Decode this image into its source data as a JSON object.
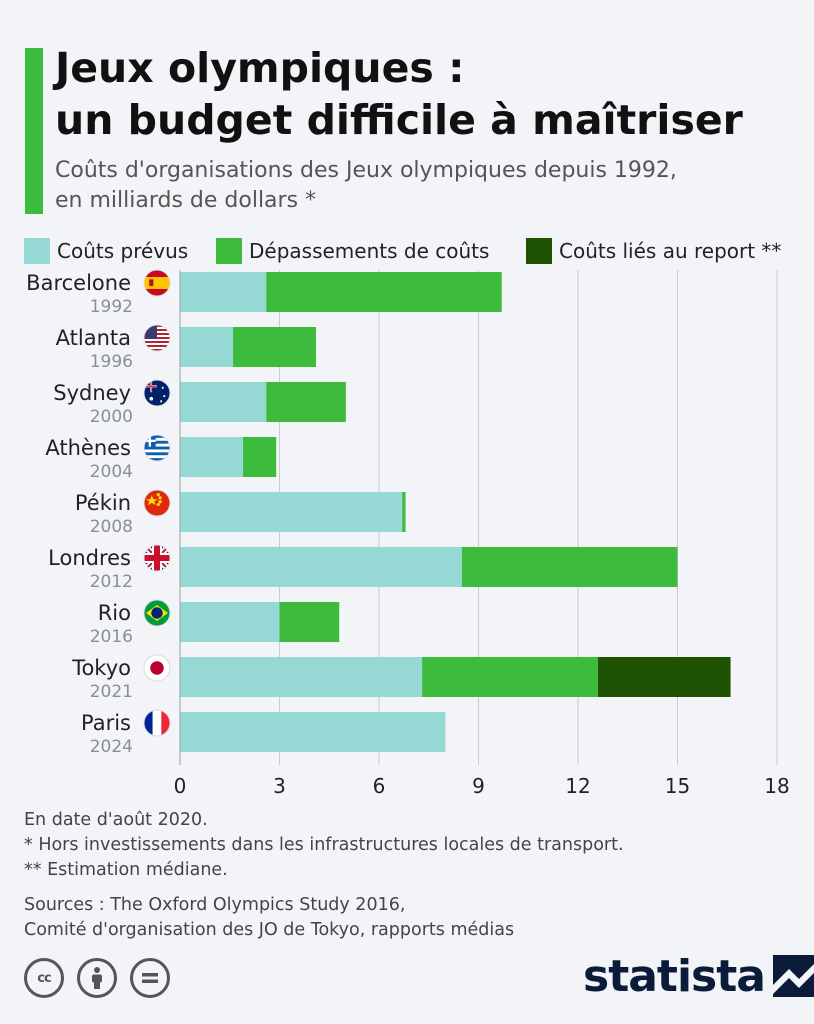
{
  "header": {
    "title_line1": "Jeux olympiques :",
    "title_line2": "un budget difficile à maîtriser",
    "subtitle_line1": "Coûts d'organisations des Jeux olympiques depuis 1992,",
    "subtitle_line2": "en milliards de dollars *"
  },
  "legend": [
    {
      "label": "Coûts prévus",
      "color": "#96d8d4"
    },
    {
      "label": "Dépassements de coûts",
      "color": "#3dbb3d"
    },
    {
      "label": "Coûts liés au report **",
      "color": "#1f5203"
    }
  ],
  "chart_data": {
    "type": "bar",
    "orientation": "horizontal",
    "stacked": true,
    "categories": [
      {
        "city": "Barcelone",
        "year": "1992",
        "flag": "spain-flag-icon"
      },
      {
        "city": "Atlanta",
        "year": "1996",
        "flag": "usa-flag-icon"
      },
      {
        "city": "Sydney",
        "year": "2000",
        "flag": "australia-flag-icon"
      },
      {
        "city": "Athènes",
        "year": "2004",
        "flag": "greece-flag-icon"
      },
      {
        "city": "Pékin",
        "year": "2008",
        "flag": "china-flag-icon"
      },
      {
        "city": "Londres",
        "year": "2012",
        "flag": "uk-flag-icon"
      },
      {
        "city": "Rio",
        "year": "2016",
        "flag": "brazil-flag-icon"
      },
      {
        "city": "Tokyo",
        "year": "2021",
        "flag": "japan-flag-icon"
      },
      {
        "city": "Paris",
        "year": "2024",
        "flag": "france-flag-icon"
      }
    ],
    "series": [
      {
        "name": "Coûts prévus",
        "color": "#96d8d4",
        "values": [
          2.6,
          1.6,
          2.6,
          1.9,
          6.7,
          8.5,
          3.0,
          7.3,
          8.0
        ]
      },
      {
        "name": "Dépassements de coûts",
        "color": "#3dbb3d",
        "values": [
          7.1,
          2.5,
          2.4,
          1.0,
          0.1,
          6.5,
          1.8,
          5.3,
          0
        ]
      },
      {
        "name": "Coûts liés au report **",
        "color": "#1f5203",
        "values": [
          0,
          0,
          0,
          0,
          0,
          0,
          0,
          4.0,
          0
        ]
      }
    ],
    "xlim": [
      0,
      18
    ],
    "xticks": [
      0,
      3,
      6,
      9,
      12,
      15,
      18
    ],
    "grid": true,
    "legend_position": "top"
  },
  "footnotes": {
    "date_note": "En date d'août 2020.",
    "note1": "*   Hors investissements dans les infrastructures locales de transport.",
    "note2": "** Estimation médiane.",
    "sources_line1": "Sources : The Oxford Olympics Study 2016,",
    "sources_line2": "Comité d'organisation des JO de Tokyo, rapports médias"
  },
  "license_icons": [
    {
      "name": "cc-icon",
      "glyph": "cc"
    },
    {
      "name": "by-icon",
      "glyph": "i"
    },
    {
      "name": "nd-icon",
      "glyph": "="
    }
  ],
  "brand": {
    "name": "statista"
  }
}
